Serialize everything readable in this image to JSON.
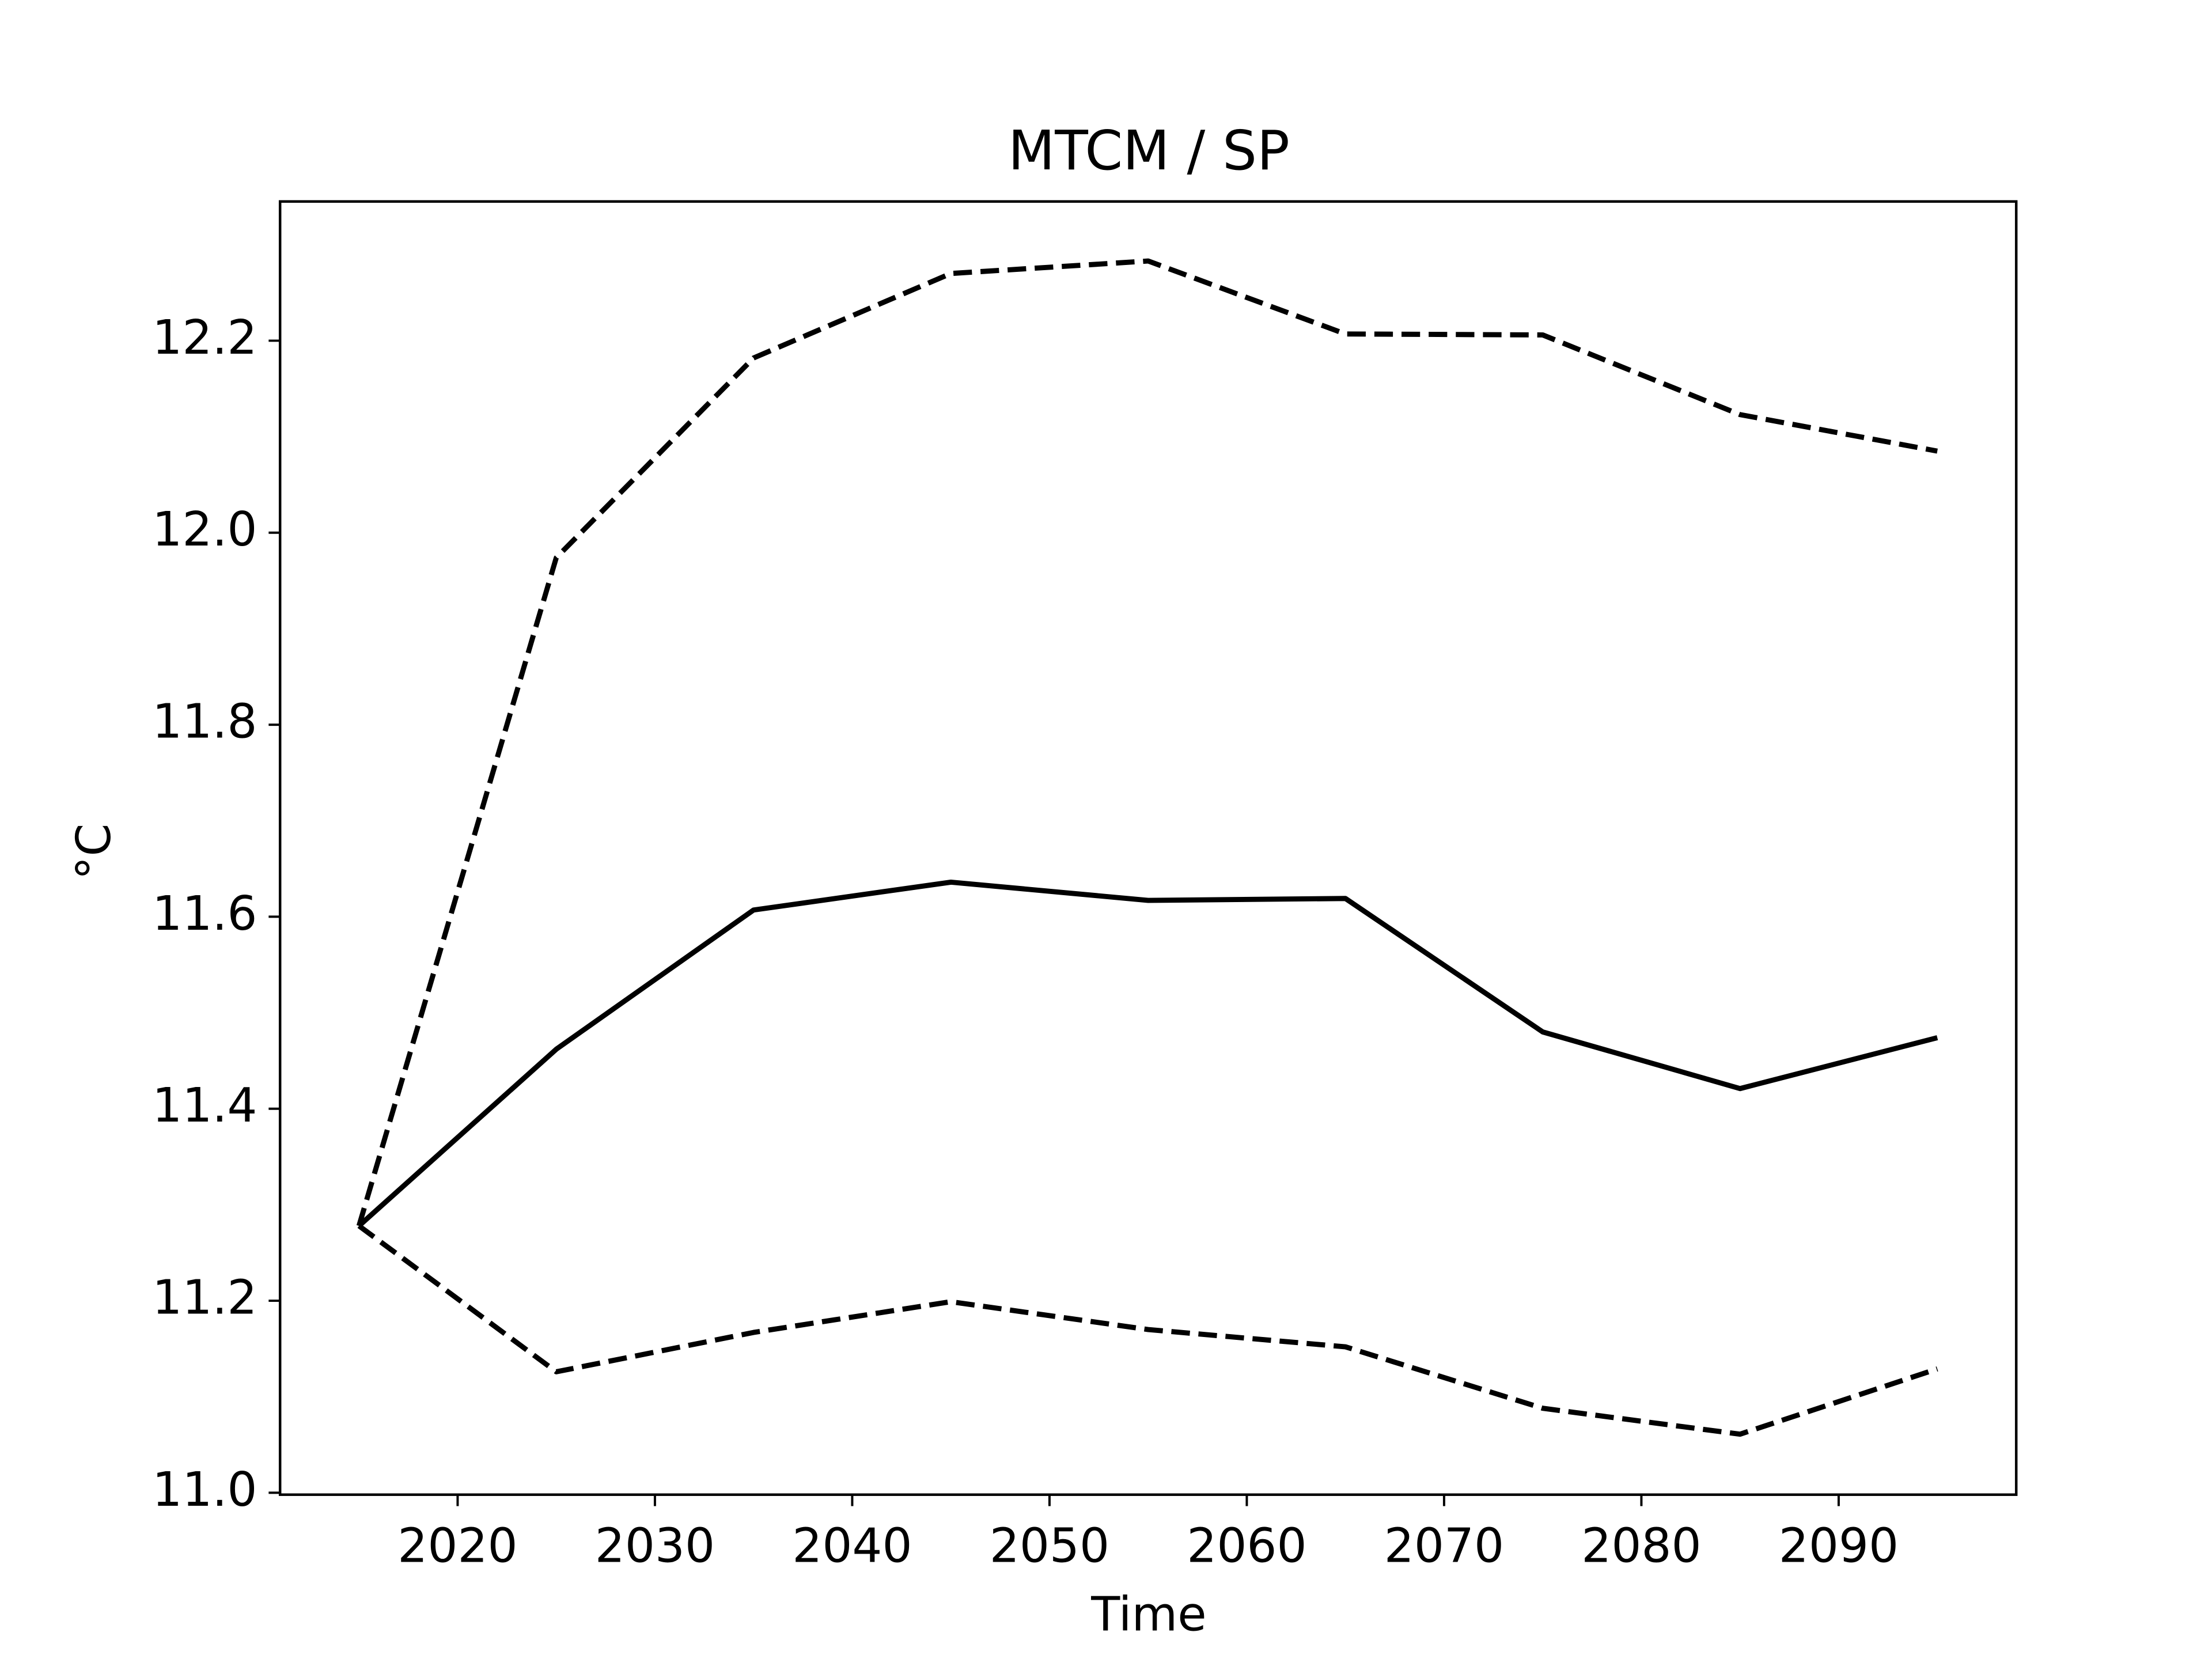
{
  "chart_data": {
    "type": "line",
    "title": "MTCM / SP",
    "x_label": "Time",
    "y_label": "°C",
    "x": [
      2015,
      2025,
      2035,
      2045,
      2055,
      2065,
      2075,
      2085,
      2095
    ],
    "series": [
      {
        "color": "#000000",
        "style": "solid",
        "values": [
          11.278,
          11.462,
          11.607,
          11.636,
          11.617,
          11.619,
          11.48,
          11.421,
          11.474
        ]
      },
      {
        "color": "#000000",
        "style": "dashed",
        "values": [
          11.278,
          11.974,
          12.182,
          12.27,
          12.283,
          12.207,
          12.206,
          12.123,
          12.085
        ]
      },
      {
        "color": "#000000",
        "style": "dashed",
        "values": [
          11.278,
          11.126,
          11.167,
          11.199,
          11.17,
          11.152,
          11.088,
          11.061,
          11.129
        ]
      }
    ],
    "xlim": [
      2011,
      2099
    ],
    "xticks": [
      2020,
      2030,
      2040,
      2050,
      2060,
      2070,
      2080,
      2090
    ],
    "ylim": [
      10.998,
      12.345
    ],
    "yticks": [
      {
        "value": 11,
        "label": "11.0"
      },
      11.2,
      11.4,
      11.6,
      11.8,
      {
        "value": 12,
        "label": "12.0"
      },
      12.2
    ],
    "grid": false
  }
}
